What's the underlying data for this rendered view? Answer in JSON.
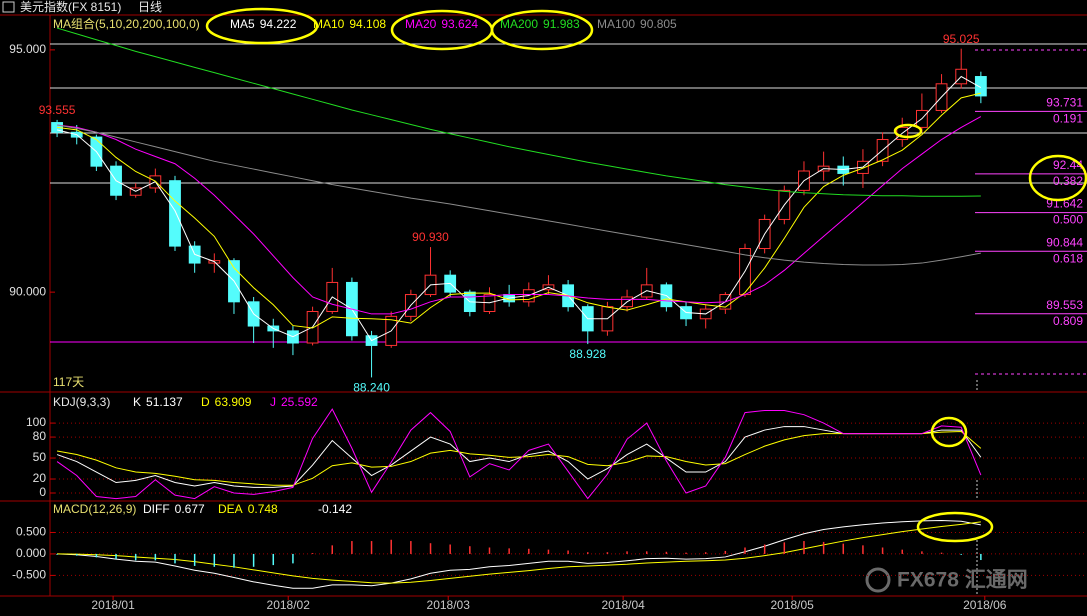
{
  "chart_data": {
    "type": "candlestick",
    "title": "美元指数(FX 8151)",
    "subtitle": "日线",
    "ma_legend_title": "MA组合(5,10,20,200,100,0)",
    "day_count": "117天",
    "watermark": "FX678 汇通网",
    "candle_colors": {
      "up": "#ff3232",
      "down": "#54fcfc"
    },
    "xlim": [
      -0.36,
      52.4
    ],
    "xticks": [
      {
        "value": 2.85,
        "label": "2018/01"
      },
      {
        "value": 11.76,
        "label": "2018/02"
      },
      {
        "value": 19.9,
        "label": "2018/03"
      },
      {
        "value": 28.8,
        "label": "2018/04"
      },
      {
        "value": 37.4,
        "label": "2018/05"
      },
      {
        "value": 47.2,
        "label": "2018/06"
      }
    ],
    "ylim": [
      87.98,
      95.72
    ],
    "yticks": [
      {
        "value": 95,
        "label": "95.000"
      },
      {
        "value": 90,
        "label": "90.000"
      }
    ],
    "grid": false,
    "candles": {
      "open": [
        93.5,
        93.3,
        93.2,
        92.6,
        92.0,
        92.15,
        92.3,
        90.95,
        90.6,
        90.65,
        89.8,
        89.3,
        89.2,
        88.95,
        89.6,
        90.2,
        89.1,
        88.9,
        89.5,
        89.95,
        90.35,
        90.0,
        89.6,
        89.95,
        89.8,
        90.05,
        90.15,
        89.7,
        89.2,
        89.7,
        89.9,
        90.15,
        89.7,
        89.45,
        89.65,
        89.95,
        90.9,
        91.5,
        92.1,
        92.5,
        92.6,
        92.45,
        92.7,
        93.15,
        93.4,
        93.75,
        94.3,
        94.45
      ],
      "high": [
        93.555,
        93.45,
        93.25,
        92.7,
        92.25,
        92.55,
        92.4,
        91.05,
        90.8,
        90.7,
        89.9,
        89.45,
        89.3,
        89.7,
        90.5,
        90.3,
        89.2,
        89.6,
        90.05,
        90.93,
        90.45,
        90.05,
        90.1,
        90.15,
        90.2,
        90.35,
        90.25,
        89.75,
        89.8,
        90.05,
        90.5,
        90.2,
        89.8,
        89.75,
        90.0,
        91.0,
        91.6,
        92.2,
        92.7,
        92.9,
        92.8,
        92.95,
        93.3,
        93.6,
        94.1,
        94.5,
        95.025,
        94.55
      ],
      "low": [
        93.2,
        93.05,
        92.5,
        91.9,
        91.95,
        92.05,
        90.85,
        90.4,
        90.4,
        89.55,
        88.95,
        88.85,
        88.7,
        88.9,
        89.55,
        89.0,
        88.24,
        88.85,
        89.4,
        89.9,
        89.9,
        89.5,
        89.55,
        89.7,
        89.7,
        89.95,
        89.6,
        88.928,
        89.1,
        89.6,
        89.85,
        89.6,
        89.3,
        89.25,
        89.55,
        89.9,
        90.8,
        91.4,
        92.0,
        92.3,
        92.2,
        92.15,
        92.6,
        93.0,
        93.3,
        93.7,
        94.2,
        93.9
      ],
      "close": [
        93.3,
        93.2,
        92.6,
        92.0,
        92.15,
        92.4,
        90.95,
        90.6,
        90.65,
        89.8,
        89.3,
        89.2,
        88.95,
        89.6,
        90.2,
        89.1,
        88.9,
        89.5,
        89.95,
        90.35,
        90.0,
        89.6,
        89.95,
        89.8,
        90.05,
        90.15,
        89.7,
        89.2,
        89.7,
        89.9,
        90.15,
        89.7,
        89.45,
        89.65,
        89.95,
        90.9,
        91.5,
        92.1,
        92.5,
        92.6,
        92.45,
        92.7,
        93.15,
        93.4,
        93.75,
        94.3,
        94.6,
        94.05
      ]
    },
    "series": [
      {
        "name": "MA5",
        "legend_value": 94.222,
        "color": "#ffffff",
        "values": [
          93.35,
          93.25,
          92.9,
          92.3,
          92.08,
          92.28,
          91.68,
          90.78,
          90.63,
          90.23,
          89.55,
          89.25,
          89.08,
          89.28,
          89.9,
          89.65,
          89.0,
          89.2,
          89.73,
          90.15,
          90.18,
          89.8,
          89.78,
          89.88,
          89.93,
          90.1,
          89.93,
          89.45,
          89.45,
          89.8,
          90.03,
          89.93,
          89.58,
          89.55,
          89.8,
          90.43,
          91.2,
          91.8,
          92.3,
          92.55,
          92.53,
          92.58,
          92.93,
          93.28,
          93.58,
          94.03,
          94.45,
          94.222
        ]
      },
      {
        "name": "MA10",
        "legend_value": 94.108,
        "color": "#ffff00",
        "values": [
          93.4,
          93.35,
          93.15,
          92.78,
          92.49,
          92.29,
          91.88,
          91.53,
          91.15,
          90.5,
          90.09,
          89.74,
          89.31,
          89.26,
          89.49,
          89.46,
          89.45,
          89.43,
          89.36,
          89.68,
          89.95,
          89.98,
          89.98,
          89.84,
          89.85,
          89.99,
          89.93,
          89.78,
          89.69,
          89.63,
          89.74,
          89.86,
          89.8,
          89.74,
          89.69,
          89.99,
          90.5,
          91.11,
          91.75,
          92.18,
          92.41,
          92.56,
          92.73,
          92.93,
          93.25,
          93.65,
          94.01,
          94.108
        ]
      },
      {
        "name": "MA20",
        "legend_value": 93.624,
        "color": "#ff00ff",
        "values": [
          93.45,
          93.4,
          93.3,
          93.15,
          92.95,
          92.8,
          92.65,
          92.35,
          92.0,
          91.6,
          91.2,
          90.75,
          90.3,
          89.9,
          89.75,
          89.65,
          89.55,
          89.55,
          89.65,
          89.8,
          89.9,
          89.9,
          89.92,
          89.95,
          89.95,
          89.95,
          89.92,
          89.88,
          89.85,
          89.85,
          89.85,
          89.82,
          89.8,
          89.78,
          89.8,
          89.95,
          90.15,
          90.45,
          90.8,
          91.15,
          91.5,
          91.85,
          92.2,
          92.55,
          92.85,
          93.15,
          93.4,
          93.624
        ]
      },
      {
        "name": "MA200",
        "legend_value": 91.983,
        "color": "#22dd22",
        "values": [
          95.45,
          95.33,
          95.21,
          95.09,
          94.97,
          94.86,
          94.75,
          94.64,
          94.53,
          94.42,
          94.31,
          94.2,
          94.09,
          93.98,
          93.87,
          93.76,
          93.66,
          93.56,
          93.46,
          93.36,
          93.27,
          93.18,
          93.09,
          93.0,
          92.92,
          92.84,
          92.76,
          92.68,
          92.61,
          92.54,
          92.47,
          92.4,
          92.34,
          92.28,
          92.22,
          92.17,
          92.12,
          92.08,
          92.05,
          92.03,
          92.01,
          92.0,
          91.99,
          91.99,
          91.98,
          91.98,
          91.98,
          91.983
        ]
      },
      {
        "name": "MA100",
        "legend_value": 90.805,
        "color": "#8c8c8c",
        "values": [
          93.45,
          93.38,
          93.3,
          93.2,
          93.1,
          93.0,
          92.9,
          92.8,
          92.7,
          92.62,
          92.54,
          92.46,
          92.38,
          92.3,
          92.22,
          92.15,
          92.08,
          92.01,
          91.94,
          91.88,
          91.82,
          91.75,
          91.68,
          91.61,
          91.54,
          91.47,
          91.4,
          91.33,
          91.26,
          91.19,
          91.12,
          91.05,
          90.98,
          90.91,
          90.84,
          90.77,
          90.71,
          90.66,
          90.62,
          90.59,
          90.57,
          90.56,
          90.56,
          90.57,
          90.6,
          90.66,
          90.73,
          90.805
        ]
      }
    ],
    "extremes": [
      95.025,
      93.555,
      {
        "value": 90.93,
        "label": "90.930"
      },
      88.928,
      {
        "value": 88.24,
        "label": "88.240"
      }
    ],
    "fibonacci_color": "#ff44ff",
    "fibonacci": [
      {
        "price": 93.731,
        "ratio": 0.191
      },
      {
        "price": 92.44,
        "ratio": 0.382
      },
      {
        "price": 91.642,
        "ratio": {
          "value": 0.5,
          "label": "0.500"
        }
      },
      {
        "price": 90.844,
        "ratio": 0.618
      },
      {
        "price": 89.553,
        "ratio": 0.809
      }
    ],
    "indicators": [
      {
        "title": "KDJ(9,3,3)",
        "ylim": [
          -10,
          133
        ],
        "yticks": [
          0,
          20,
          50,
          80,
          100
        ],
        "grid": true,
        "series": [
          {
            "type": "line",
            "name": "K",
            "legend_value": 51.137,
            "color": "#ffffff",
            "values": [
              55,
              45,
              30,
              15,
              18,
              25,
              15,
              10,
              15,
              10,
              8,
              8,
              10,
              40,
              75,
              50,
              25,
              40,
              60,
              80,
              70,
              45,
              50,
              45,
              55,
              60,
              45,
              20,
              35,
              55,
              70,
              50,
              30,
              30,
              45,
              80,
              90,
              95,
              95,
              90,
              85,
              85,
              85,
              85,
              85,
              90,
              90,
              51.137
            ]
          },
          {
            "type": "line",
            "name": "D",
            "legend_value": 63.909,
            "color": "#ffff00",
            "values": [
              60,
              55,
              47,
              36,
              30,
              28,
              24,
              19,
              18,
              15,
              13,
              11,
              11,
              21,
              39,
              43,
              37,
              38,
              45,
              57,
              61,
              56,
              54,
              51,
              52,
              55,
              52,
              41,
              39,
              44,
              53,
              52,
              45,
              40,
              42,
              55,
              67,
              76,
              82,
              85,
              85,
              85,
              85,
              85,
              85,
              87,
              88,
              63.909
            ]
          },
          {
            "type": "line",
            "name": "J",
            "legend_value": 25.592,
            "color": "#ff00ff",
            "values": [
              45,
              25,
              -5,
              -8,
              -5,
              19,
              -3,
              -8,
              9,
              0,
              -2,
              2,
              8,
              78,
              120,
              64,
              1,
              44,
              90,
              115,
              88,
              23,
              42,
              33,
              61,
              70,
              31,
              -8,
              27,
              77,
              100,
              46,
              0,
              10,
              51,
              115,
              118,
              118,
              112,
              100,
              85,
              85,
              85,
              85,
              85,
              96,
              94,
              25.592
            ]
          }
        ]
      },
      {
        "title": "MACD(12,26,9)",
        "ylim": [
          -0.98,
          1.14
        ],
        "yticks": [
          {
            "value": 0.5,
            "label": "0.500"
          },
          {
            "value": 0,
            "label": "0.000"
          },
          {
            "value": -0.5,
            "label": "-0.500"
          }
        ],
        "grid": true,
        "series": [
          {
            "type": "line",
            "name": "DIFF",
            "legend_value": 0.677,
            "color": "#ffffff",
            "values": [
              0.0,
              -0.02,
              -0.06,
              -0.12,
              -0.17,
              -0.19,
              -0.28,
              -0.38,
              -0.45,
              -0.55,
              -0.65,
              -0.73,
              -0.8,
              -0.8,
              -0.72,
              -0.72,
              -0.74,
              -0.68,
              -0.58,
              -0.45,
              -0.38,
              -0.36,
              -0.3,
              -0.27,
              -0.22,
              -0.17,
              -0.17,
              -0.22,
              -0.2,
              -0.16,
              -0.11,
              -0.1,
              -0.12,
              -0.11,
              -0.07,
              0.05,
              0.18,
              0.33,
              0.47,
              0.57,
              0.63,
              0.68,
              0.72,
              0.75,
              0.77,
              0.78,
              0.76,
              0.677
            ]
          },
          {
            "type": "line",
            "name": "DEA",
            "legend_value": 0.748,
            "color": "#ffff00",
            "values": [
              0.0,
              -0.005,
              -0.02,
              -0.04,
              -0.07,
              -0.1,
              -0.13,
              -0.18,
              -0.24,
              -0.3,
              -0.37,
              -0.44,
              -0.51,
              -0.57,
              -0.61,
              -0.64,
              -0.67,
              -0.68,
              -0.66,
              -0.62,
              -0.57,
              -0.52,
              -0.47,
              -0.43,
              -0.39,
              -0.34,
              -0.3,
              -0.28,
              -0.26,
              -0.24,
              -0.21,
              -0.19,
              -0.17,
              -0.16,
              -0.14,
              -0.1,
              -0.04,
              0.03,
              0.12,
              0.21,
              0.3,
              0.38,
              0.45,
              0.52,
              0.58,
              0.64,
              0.69,
              0.748
            ]
          },
          {
            "type": "bar",
            "legend_value": -0.142,
            "legend_color": "#ffffff",
            "color": "#ff3232",
            "negative_color": "#54fcfc",
            "values": [
              -0.02,
              -0.04,
              -0.08,
              -0.12,
              -0.15,
              -0.15,
              -0.22,
              -0.28,
              -0.3,
              -0.32,
              -0.3,
              -0.26,
              -0.22,
              0.02,
              0.2,
              0.3,
              0.3,
              0.33,
              0.3,
              0.25,
              0.22,
              0.18,
              0.15,
              0.13,
              0.12,
              0.1,
              0.08,
              0.04,
              0.04,
              0.06,
              0.06,
              0.05,
              0.03,
              0.04,
              0.07,
              0.15,
              0.22,
              0.27,
              0.3,
              0.28,
              0.24,
              0.2,
              0.15,
              0.1,
              0.06,
              0.03,
              -0.02,
              -0.142
            ]
          }
        ]
      }
    ]
  }
}
